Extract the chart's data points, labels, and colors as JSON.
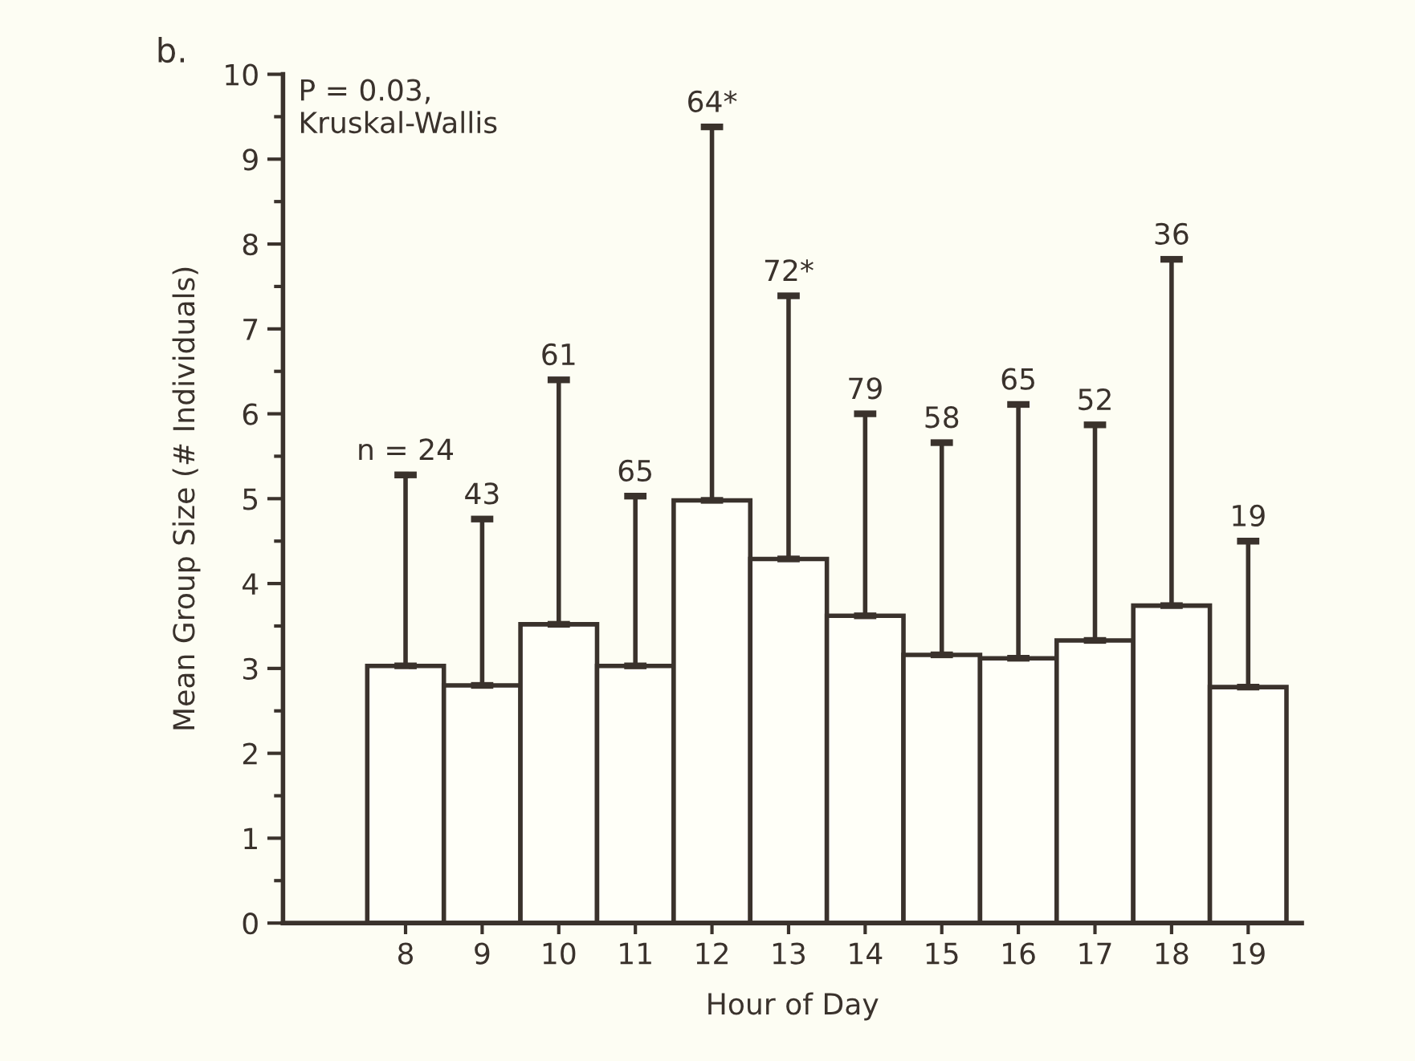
{
  "chart_data": {
    "type": "bar",
    "title": "b.",
    "xlabel": "Hour of Day",
    "ylabel": "Mean Group Size (# Individuals)",
    "categories": [
      "8",
      "9",
      "10",
      "11",
      "12",
      "13",
      "14",
      "15",
      "16",
      "17",
      "18",
      "19"
    ],
    "values": [
      3.03,
      2.8,
      3.52,
      3.03,
      4.98,
      4.29,
      3.62,
      3.16,
      3.12,
      3.33,
      3.74,
      2.78
    ],
    "errors": [
      [
        3.03,
        5.28
      ],
      [
        2.8,
        4.76
      ],
      [
        3.52,
        6.4
      ],
      [
        3.03,
        5.03
      ],
      [
        4.98,
        9.38
      ],
      [
        4.29,
        7.39
      ],
      [
        3.62,
        6.0
      ],
      [
        3.16,
        5.66
      ],
      [
        3.12,
        6.11
      ],
      [
        3.33,
        5.87
      ],
      [
        3.74,
        7.82
      ],
      [
        2.78,
        4.5
      ]
    ],
    "color": "#fffff8",
    "ylim": [
      0,
      10
    ],
    "yticks": [
      0,
      1,
      2,
      3,
      4,
      5,
      6,
      7,
      8,
      9,
      10
    ],
    "annotations": [
      "P = 0.03,\nKruskal-Wallis",
      {
        "text": "n = 24",
        "x": "8",
        "y": 5.28
      },
      {
        "text": "43",
        "x": "9",
        "y": 4.76
      },
      {
        "text": "61",
        "x": "10",
        "y": 6.4
      },
      {
        "text": "65",
        "x": "11",
        "y": 5.03
      },
      {
        "text": "64*",
        "x": "12",
        "y": 9.38
      },
      {
        "text": "72*",
        "x": "13",
        "y": 7.39
      },
      {
        "text": "79",
        "x": "14",
        "y": 6.0
      },
      {
        "text": "58",
        "x": "15",
        "y": 5.66
      },
      {
        "text": "65",
        "x": "16",
        "y": 6.11
      },
      {
        "text": "52",
        "x": "17",
        "y": 5.87
      },
      {
        "text": "36",
        "x": "18",
        "y": 7.82
      },
      {
        "text": "19",
        "x": "19",
        "y": 4.5
      }
    ],
    "grid": false,
    "legend": false
  }
}
